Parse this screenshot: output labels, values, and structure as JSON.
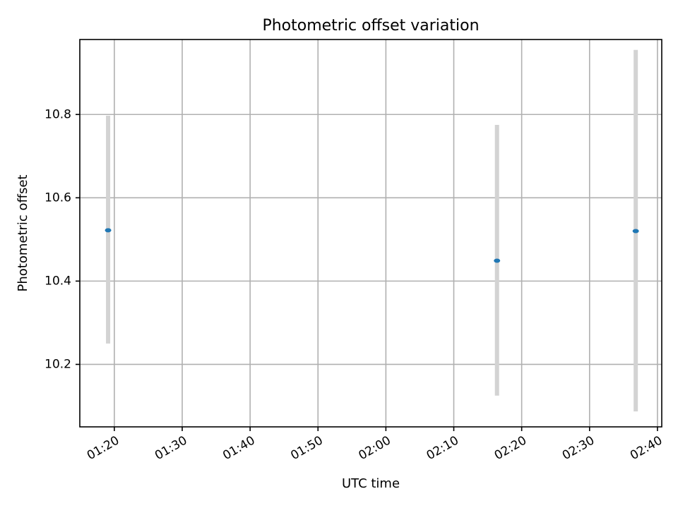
{
  "chart_data": {
    "type": "scatter",
    "title": "Photometric offset variation",
    "xlabel": "UTC time",
    "ylabel": "Photometric offset",
    "x_kind": "time",
    "xlim": [
      "01:14:55",
      "02:40:38"
    ],
    "ylim": [
      10.05,
      10.98
    ],
    "x_ticks": [
      "01:20",
      "01:30",
      "01:40",
      "01:50",
      "02:00",
      "02:10",
      "02:20",
      "02:30",
      "02:40"
    ],
    "y_ticks": [
      10.2,
      10.4,
      10.6,
      10.8
    ],
    "y_tick_labels": [
      "10.2",
      "10.4",
      "10.6",
      "10.8"
    ],
    "grid": true,
    "marker_color": "#1f77b4",
    "errorbar_color": "#d3d3d3",
    "points": [
      {
        "x": "01:19:05",
        "y": 10.522,
        "y_low": 10.25,
        "y_high": 10.797
      },
      {
        "x": "02:16:22",
        "y": 10.449,
        "y_low": 10.125,
        "y_high": 10.775
      },
      {
        "x": "02:36:48",
        "y": 10.52,
        "y_low": 10.087,
        "y_high": 10.955
      }
    ]
  }
}
